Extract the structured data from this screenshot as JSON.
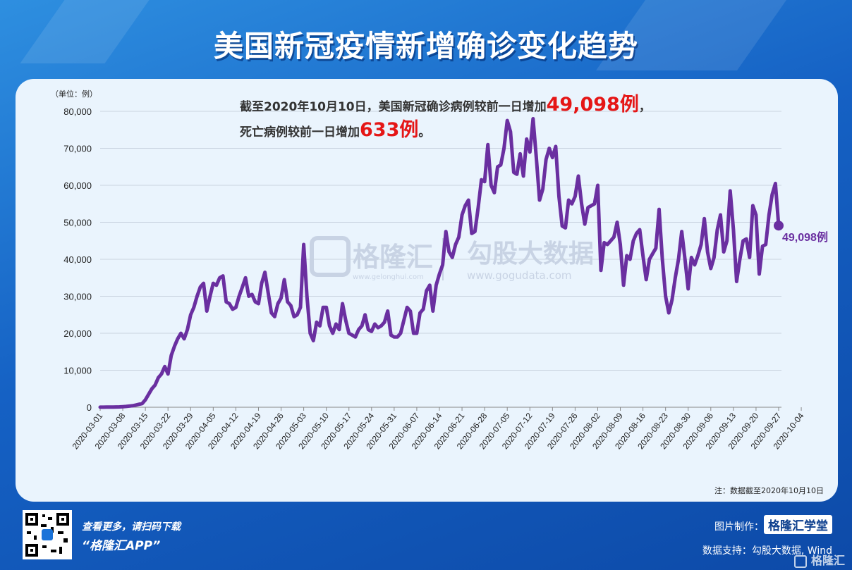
{
  "title": "美国新冠疫情新增确诊变化趋势",
  "unit_label": "（单位：例）",
  "callout": {
    "line1_prefix": "截至2020年10月10日，美国新冠确诊病例较前一日增加",
    "line1_value": "49,098例",
    "line1_suffix": "，",
    "line2_prefix": "死亡病例较前一日增加",
    "line2_value": "633例",
    "line2_suffix": "。"
  },
  "end_label": "49,098例",
  "watermark": {
    "brand": "格隆汇",
    "brand_url": "www.gelonghui.com",
    "brand2": "勾股大数据",
    "brand2_url": "www.gogudata.com"
  },
  "note": "注：数据截至2020年10月10日",
  "footer": {
    "scan_text": "查看更多，请扫码下载",
    "app_text": "“格隆汇APP”",
    "made_by_label": "图片制作：",
    "made_by_brand": "格隆汇学堂",
    "data_support": "数据支持：勾股大数据, Wind",
    "corner_brand": "格隆汇"
  },
  "colors": {
    "line": "#6a2fa0",
    "accent_red": "#e51616",
    "panel": "#eaf4fd"
  },
  "chart_data": {
    "type": "line",
    "ylim": [
      0,
      80000
    ],
    "yticks": [
      "0",
      "10,000",
      "20,000",
      "30,000",
      "40,000",
      "50,000",
      "60,000",
      "70,000",
      "80,000"
    ],
    "xticks": [
      "2020-03-01",
      "2020-03-08",
      "2020-03-15",
      "2020-03-22",
      "2020-03-29",
      "2020-04-05",
      "2020-04-12",
      "2020-04-19",
      "2020-04-26",
      "2020-05-03",
      "2020-05-10",
      "2020-05-17",
      "2020-05-24",
      "2020-05-31",
      "2020-06-07",
      "2020-06-14",
      "2020-06-21",
      "2020-06-28",
      "2020-07-05",
      "2020-07-12",
      "2020-07-19",
      "2020-07-26",
      "2020-08-02",
      "2020-08-09",
      "2020-08-16",
      "2020-08-23",
      "2020-08-30",
      "2020-09-06",
      "2020-09-13",
      "2020-09-20",
      "2020-09-27",
      "2020-10-04"
    ],
    "start_date": "2020-03-01",
    "values": [
      10,
      20,
      30,
      40,
      60,
      80,
      100,
      150,
      200,
      300,
      400,
      600,
      800,
      1000,
      2000,
      3500,
      5000,
      6000,
      8000,
      9000,
      11000,
      9000,
      14000,
      16500,
      18500,
      20000,
      18500,
      21000,
      25000,
      27000,
      30000,
      32500,
      33500,
      26000,
      30000,
      33500,
      33000,
      35000,
      35500,
      28500,
      28000,
      26500,
      27000,
      30000,
      32500,
      35000,
      30000,
      30500,
      28500,
      28000,
      33500,
      36500,
      31000,
      25500,
      24500,
      28000,
      29500,
      34500,
      28500,
      27500,
      24500,
      25000,
      27000,
      44000,
      30000,
      20000,
      18000,
      23000,
      22000,
      27000,
      27000,
      22000,
      20000,
      22500,
      21000,
      28000,
      23500,
      20000,
      19500,
      19000,
      21000,
      22000,
      25000,
      21000,
      20500,
      22500,
      21500,
      22000,
      23000,
      26000,
      19500,
      19000,
      19000,
      20000,
      23500,
      27000,
      26000,
      20000,
      20000,
      25500,
      26500,
      31500,
      33000,
      26000,
      33000,
      36000,
      38500,
      47500,
      42000,
      40500,
      44000,
      46000,
      52000,
      54500,
      56000,
      47000,
      47500,
      54000,
      61500,
      61000,
      71000,
      60000,
      58000,
      65000,
      65500,
      70000,
      77500,
      74500,
      63500,
      63000,
      68500,
      62500,
      72500,
      69000,
      78000,
      67500,
      56000,
      59000,
      67000,
      70000,
      67500,
      70500,
      57000,
      49000,
      48500,
      56000,
      55000,
      57000,
      62500,
      55000,
      49500,
      54000,
      54500,
      55000,
      60000,
      37000,
      44500,
      44000,
      45000,
      46000,
      50000,
      44000,
      33000,
      41000,
      40000,
      45000,
      47000,
      48000,
      41000,
      34500,
      40000,
      41500,
      43000,
      53500,
      40000,
      30000,
      25500,
      29000,
      35000,
      40000,
      47500,
      40000,
      32000,
      40500,
      38500,
      41000,
      44000,
      51000,
      42000,
      37500,
      40500,
      48000,
      52000,
      42000,
      45000,
      58500,
      48000,
      34000,
      40000,
      45000,
      45500,
      40500,
      54500,
      52000,
      36000,
      43500,
      44000,
      52000,
      57500,
      60500,
      49098
    ]
  }
}
